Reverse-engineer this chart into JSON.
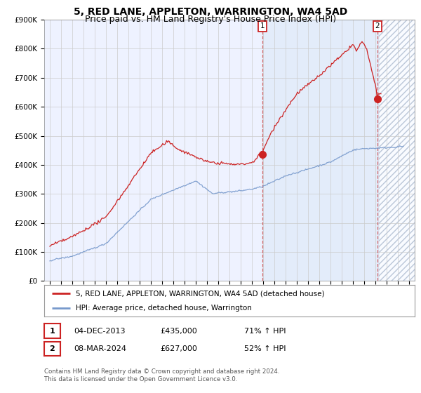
{
  "title": "5, RED LANE, APPLETON, WARRINGTON, WA4 5AD",
  "subtitle": "Price paid vs. HM Land Registry's House Price Index (HPI)",
  "ylim": [
    0,
    900000
  ],
  "yticks": [
    0,
    100000,
    200000,
    300000,
    400000,
    500000,
    600000,
    700000,
    800000,
    900000
  ],
  "ytick_labels": [
    "£0",
    "£100K",
    "£200K",
    "£300K",
    "£400K",
    "£500K",
    "£600K",
    "£700K",
    "£800K",
    "£900K"
  ],
  "xlim_start": 1994.5,
  "xlim_end": 2027.5,
  "hpi_color": "#7799cc",
  "price_color": "#cc2222",
  "transaction1_x": 2013.92,
  "transaction1_y": 435000,
  "transaction2_x": 2024.18,
  "transaction2_y": 627000,
  "vline1_x": 2013.92,
  "vline2_x": 2024.18,
  "shade_start": 2013.92,
  "hatch_start": 2024.3,
  "legend_label_price": "5, RED LANE, APPLETON, WARRINGTON, WA4 5AD (detached house)",
  "legend_label_hpi": "HPI: Average price, detached house, Warrington",
  "table_row1": [
    "1",
    "04-DEC-2013",
    "£435,000",
    "71% ↑ HPI"
  ],
  "table_row2": [
    "2",
    "08-MAR-2024",
    "£627,000",
    "52% ↑ HPI"
  ],
  "footer": "Contains HM Land Registry data © Crown copyright and database right 2024.\nThis data is licensed under the Open Government Licence v3.0.",
  "bg_color": "#ffffff",
  "plot_bg_color": "#eef2ff",
  "title_fontsize": 10,
  "subtitle_fontsize": 9
}
